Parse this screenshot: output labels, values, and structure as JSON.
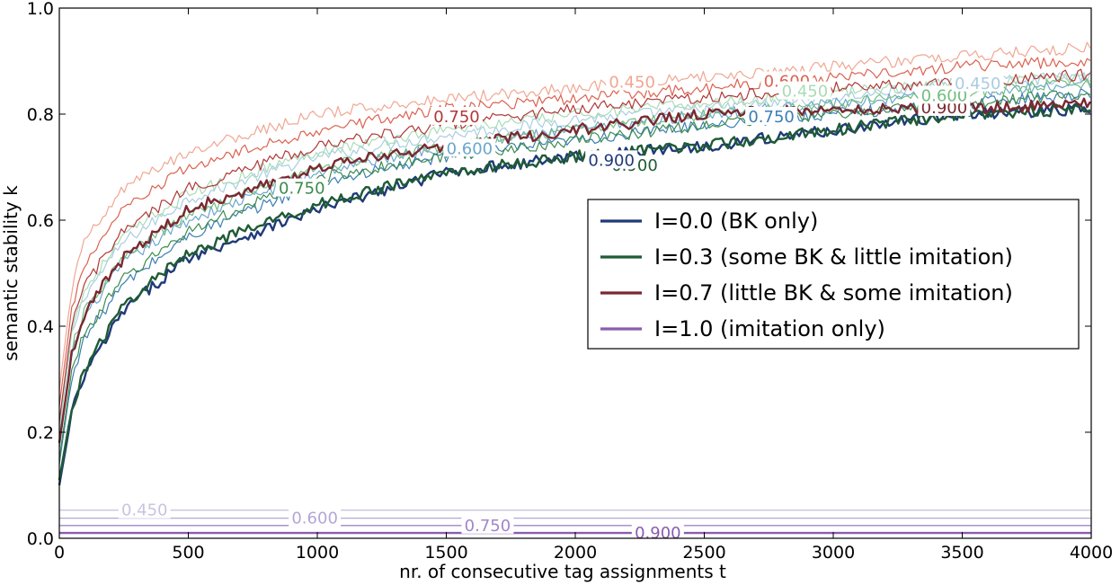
{
  "chart_data": {
    "type": "line",
    "xlabel": "nr. of consecutive tag assignments t",
    "ylabel": "semantic stability k",
    "xlim": [
      0,
      4000
    ],
    "ylim": [
      0.0,
      1.0
    ],
    "x_ticks": [
      0,
      500,
      1000,
      1500,
      2000,
      2500,
      3000,
      3500,
      4000
    ],
    "y_ticks": [
      "0.0",
      "0.2",
      "0.4",
      "0.6",
      "0.8",
      "1.0"
    ],
    "legend_position": "center-right",
    "legend": [
      {
        "label": "I=0.0 (BK only)",
        "color": "#1f3a78"
      },
      {
        "label": "I=0.3 (some BK & little imitation)",
        "color": "#1e5b34"
      },
      {
        "label": "I=0.7 (little BK & some imitation)",
        "color": "#7a2830"
      },
      {
        "label": "I=1.0 (imitation only)",
        "color": "#8a5cb0"
      }
    ],
    "series": [
      {
        "group": "I=0.0 (BK only)",
        "label": "0.450",
        "color": "#a8cde2",
        "x": [
          0,
          50,
          100,
          250,
          500,
          1000,
          1500,
          2000,
          2500,
          3000,
          3500,
          4000
        ],
        "y": [
          0.2,
          0.39,
          0.46,
          0.56,
          0.64,
          0.72,
          0.76,
          0.79,
          0.81,
          0.83,
          0.86,
          0.87
        ]
      },
      {
        "group": "I=0.0 (BK only)",
        "label": "0.600",
        "color": "#6aa7cd",
        "x": [
          0,
          50,
          100,
          250,
          500,
          1000,
          1500,
          2000,
          2500,
          3000,
          3500,
          4000
        ],
        "y": [
          0.17,
          0.35,
          0.42,
          0.52,
          0.6,
          0.69,
          0.74,
          0.77,
          0.8,
          0.82,
          0.84,
          0.86
        ]
      },
      {
        "group": "I=0.0 (BK only)",
        "label": "0.750",
        "color": "#3a7fb4",
        "x": [
          0,
          50,
          100,
          250,
          500,
          1000,
          1500,
          2000,
          2500,
          3000,
          3500,
          4000
        ],
        "y": [
          0.14,
          0.31,
          0.38,
          0.48,
          0.57,
          0.67,
          0.72,
          0.75,
          0.78,
          0.8,
          0.82,
          0.84
        ]
      },
      {
        "group": "I=0.0 (BK only)",
        "label": "0.900",
        "color": "#1f3a78",
        "x": [
          0,
          50,
          100,
          250,
          500,
          1000,
          1500,
          2000,
          2500,
          3000,
          3500,
          4000
        ],
        "y": [
          0.1,
          0.24,
          0.31,
          0.43,
          0.53,
          0.62,
          0.69,
          0.72,
          0.74,
          0.77,
          0.8,
          0.81
        ]
      },
      {
        "group": "I=0.3 (some BK & little imitation)",
        "label": "0.450",
        "color": "#a9dcb6",
        "x": [
          0,
          50,
          100,
          250,
          500,
          1000,
          1500,
          2000,
          2500,
          3000,
          3500,
          4000
        ],
        "y": [
          0.21,
          0.4,
          0.47,
          0.57,
          0.65,
          0.73,
          0.77,
          0.8,
          0.82,
          0.84,
          0.86,
          0.87
        ]
      },
      {
        "group": "I=0.3 (some BK & little imitation)",
        "label": "0.600",
        "color": "#72bd80",
        "x": [
          0,
          50,
          100,
          250,
          500,
          1000,
          1500,
          2000,
          2500,
          3000,
          3500,
          4000
        ],
        "y": [
          0.18,
          0.36,
          0.43,
          0.53,
          0.61,
          0.7,
          0.74,
          0.77,
          0.8,
          0.82,
          0.84,
          0.86
        ]
      },
      {
        "group": "I=0.3 (some BK & little imitation)",
        "label": "0.750",
        "color": "#3c8b4c",
        "x": [
          0,
          50,
          100,
          250,
          500,
          1000,
          1500,
          2000,
          2500,
          3000,
          3500,
          4000
        ],
        "y": [
          0.15,
          0.32,
          0.39,
          0.49,
          0.58,
          0.68,
          0.72,
          0.75,
          0.78,
          0.8,
          0.82,
          0.84
        ]
      },
      {
        "group": "I=0.3 (some BK & little imitation)",
        "label": "0.900",
        "color": "#1e5b34",
        "x": [
          0,
          50,
          100,
          250,
          500,
          1000,
          1500,
          2000,
          2500,
          3000,
          3500,
          4000
        ],
        "y": [
          0.11,
          0.25,
          0.32,
          0.44,
          0.54,
          0.63,
          0.69,
          0.72,
          0.74,
          0.77,
          0.8,
          0.81
        ]
      },
      {
        "group": "I=0.7 (little BK & some imitation)",
        "label": "0.450",
        "color": "#f0a793",
        "x": [
          0,
          50,
          100,
          250,
          500,
          1000,
          1500,
          2000,
          2500,
          3000,
          3500,
          4000
        ],
        "y": [
          0.28,
          0.48,
          0.56,
          0.66,
          0.73,
          0.8,
          0.83,
          0.85,
          0.87,
          0.89,
          0.91,
          0.925
        ]
      },
      {
        "group": "I=0.7 (little BK & some imitation)",
        "label": "0.600",
        "color": "#db6250",
        "x": [
          0,
          50,
          100,
          250,
          500,
          1000,
          1500,
          2000,
          2500,
          3000,
          3500,
          4000
        ],
        "y": [
          0.25,
          0.44,
          0.52,
          0.62,
          0.7,
          0.77,
          0.81,
          0.83,
          0.85,
          0.87,
          0.89,
          0.9
        ]
      },
      {
        "group": "I=0.7 (little BK & some imitation)",
        "label": "0.750",
        "color": "#b03838",
        "x": [
          0,
          50,
          100,
          250,
          500,
          1000,
          1500,
          2000,
          2500,
          3000,
          3500,
          4000
        ],
        "y": [
          0.22,
          0.41,
          0.48,
          0.58,
          0.66,
          0.74,
          0.78,
          0.81,
          0.83,
          0.85,
          0.86,
          0.875
        ]
      },
      {
        "group": "I=0.7 (little BK & some imitation)",
        "label": "0.900",
        "color": "#7a2830",
        "x": [
          0,
          50,
          100,
          250,
          500,
          1000,
          1500,
          2000,
          2500,
          3000,
          3500,
          4000
        ],
        "y": [
          0.18,
          0.35,
          0.43,
          0.53,
          0.62,
          0.7,
          0.74,
          0.77,
          0.8,
          0.81,
          0.81,
          0.82
        ]
      },
      {
        "group": "I=1.0 (imitation only)",
        "label": "0.450",
        "color": "#c9c3e0",
        "x": [
          0,
          4000
        ],
        "y": [
          0.053,
          0.053
        ]
      },
      {
        "group": "I=1.0 (imitation only)",
        "label": "0.600",
        "color": "#b3a7d6",
        "x": [
          0,
          4000
        ],
        "y": [
          0.038,
          0.038
        ]
      },
      {
        "group": "I=1.0 (imitation only)",
        "label": "0.750",
        "color": "#a186c9",
        "x": [
          0,
          4000
        ],
        "y": [
          0.024,
          0.024
        ]
      },
      {
        "group": "I=1.0 (imitation only)",
        "label": "0.900",
        "color": "#8a5cb0",
        "x": [
          0,
          4000
        ],
        "y": [
          0.01,
          0.01
        ]
      }
    ],
    "line_labels": [
      {
        "text": "0.450",
        "color": "#f0a793",
        "x": 2220,
        "y": 0.86
      },
      {
        "text": "0.600",
        "color": "#db6250",
        "x": 2820,
        "y": 0.862
      },
      {
        "text": "0.750",
        "color": "#b03838",
        "x": 1540,
        "y": 0.795
      },
      {
        "text": "0.900",
        "color": "#7a2830",
        "x": 3430,
        "y": 0.812
      },
      {
        "text": "0.450",
        "color": "#a9dcb6",
        "x": 2890,
        "y": 0.843
      },
      {
        "text": "0.600",
        "color": "#72bd80",
        "x": 3430,
        "y": 0.835
      },
      {
        "text": "0.750",
        "color": "#3c8b4c",
        "x": 940,
        "y": 0.66
      },
      {
        "text": "0.900",
        "color": "#1e5b34",
        "x": 2230,
        "y": 0.703
      },
      {
        "text": "0.450",
        "color": "#a8cde2",
        "x": 3560,
        "y": 0.858
      },
      {
        "text": "0.600",
        "color": "#6aa7cd",
        "x": 1590,
        "y": 0.735
      },
      {
        "text": "0.750",
        "color": "#3a7fb4",
        "x": 2760,
        "y": 0.795
      },
      {
        "text": "0.900",
        "color": "#1f3a78",
        "x": 2140,
        "y": 0.713
      },
      {
        "text": "0.450",
        "color": "#c9c3e0",
        "x": 330,
        "y": 0.053
      },
      {
        "text": "0.600",
        "color": "#b3a7d6",
        "x": 990,
        "y": 0.038
      },
      {
        "text": "0.750",
        "color": "#a186c9",
        "x": 1660,
        "y": 0.024
      },
      {
        "text": "0.900",
        "color": "#8a5cb0",
        "x": 2320,
        "y": 0.01
      }
    ]
  }
}
